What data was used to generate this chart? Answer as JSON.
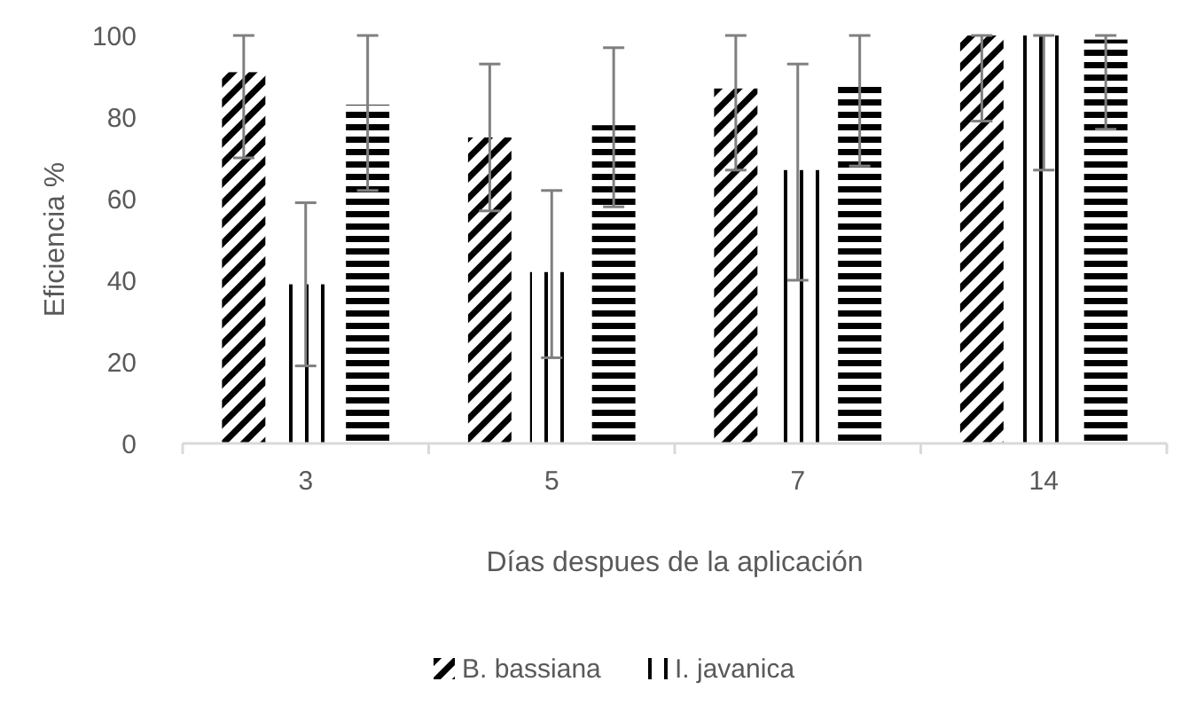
{
  "chart_data": {
    "type": "bar",
    "xlabel": "Días despues de la aplicación",
    "ylabel": "Eficiencia %",
    "categories": [
      "3",
      "5",
      "7",
      "14"
    ],
    "ylim": [
      0,
      100
    ],
    "yticks": [
      0,
      20,
      40,
      60,
      80,
      100
    ],
    "grid": false,
    "legend": "bottom",
    "series": [
      {
        "name": "B. bassiana",
        "color": "#000000",
        "values": [
          91,
          75,
          87,
          100
        ],
        "errors": [
          [
            70,
            100
          ],
          [
            57,
            93
          ],
          [
            67,
            100
          ],
          [
            79,
            100
          ]
        ]
      },
      {
        "name": "I. javanica",
        "color": "#000000",
        "values": [
          39,
          42,
          67,
          100
        ],
        "errors": [
          [
            19,
            59
          ],
          [
            21,
            62
          ],
          [
            40,
            93
          ],
          [
            67,
            100
          ]
        ]
      },
      {
        "color": "#000000",
        "values": [
          83,
          78,
          88,
          99
        ],
        "errors": [
          [
            62,
            100
          ],
          [
            58,
            97
          ],
          [
            68,
            100
          ],
          [
            77,
            100
          ]
        ]
      }
    ]
  }
}
